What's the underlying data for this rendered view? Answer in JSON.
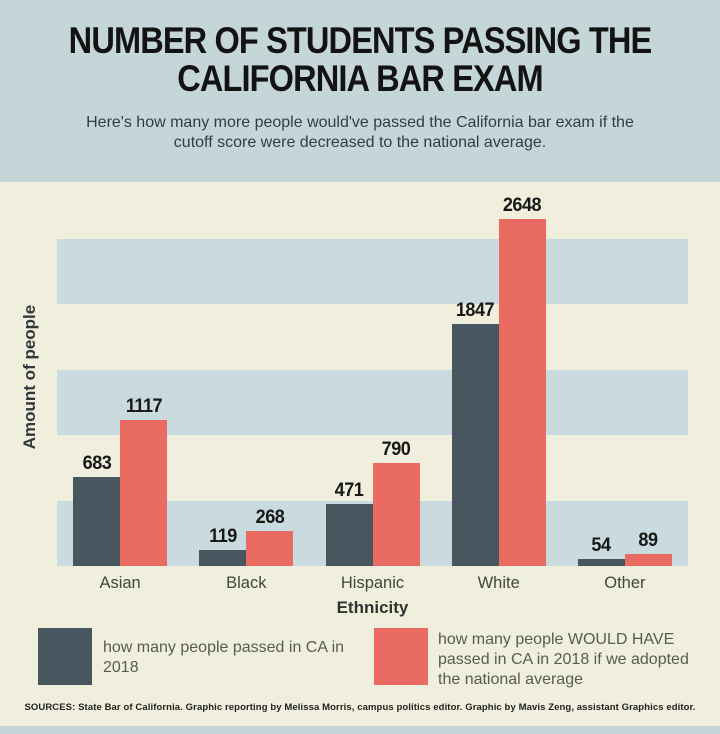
{
  "header": {
    "title_lines": [
      "NUMBER OF STUDENTS PASSING THE",
      "CALIFORNIA BAR EXAM"
    ],
    "subtitle_lines": [
      "Here's how many more people would've passed the California bar exam if the",
      "cutoff score were decreased to the national average."
    ]
  },
  "chart_data": {
    "type": "bar",
    "title": "NUMBER OF STUDENTS PASSING THE CALIFORNIA BAR EXAM",
    "subtitle": "Here's how many more people would've passed the California bar exam if the cutoff score were decreased to the national average.",
    "categories": [
      "Asian",
      "Black",
      "Hispanic",
      "White",
      "Other"
    ],
    "series": [
      {
        "name": "how many people passed in CA in 2018",
        "color": "#48575f",
        "values": [
          683,
          119,
          471,
          1847,
          54
        ]
      },
      {
        "name": "how many people WOULD HAVE passed in CA in 2018 if we adopted the national average",
        "color": "#e96b61",
        "values": [
          1117,
          268,
          790,
          2648,
          89
        ]
      }
    ],
    "xlabel": "Ethnicity",
    "ylabel": "Amount of people",
    "ylim": [
      0,
      2750
    ],
    "gridbands": [
      [
        0,
        500
      ],
      [
        1000,
        1500
      ],
      [
        2000,
        2500
      ]
    ],
    "grid": "horizontal striped bands, no numeric tick labels",
    "value_labels": "shown above each bar",
    "legend_position": "bottom"
  },
  "legend": {
    "items": [
      {
        "label": "how many people passed in CA in 2018",
        "color": "#48575f"
      },
      {
        "label": "how many people WOULD HAVE passed in CA in 2018 if we adopted the national average",
        "color": "#e96b61"
      }
    ]
  },
  "footer": {
    "sources": "SOURCES: State Bar of California. Graphic reporting by Melissa Morris, campus politics editor. Graphic by Mavis Zeng, assistant Graphics editor."
  },
  "colors": {
    "page_background": "#c5d6d8",
    "panel_background": "#f0efdd",
    "grid_band": "#c9dbde",
    "bar_passed": "#48575f",
    "bar_would_have_passed": "#e96b61",
    "title_text": "#131313",
    "body_text": "#565c4f"
  }
}
